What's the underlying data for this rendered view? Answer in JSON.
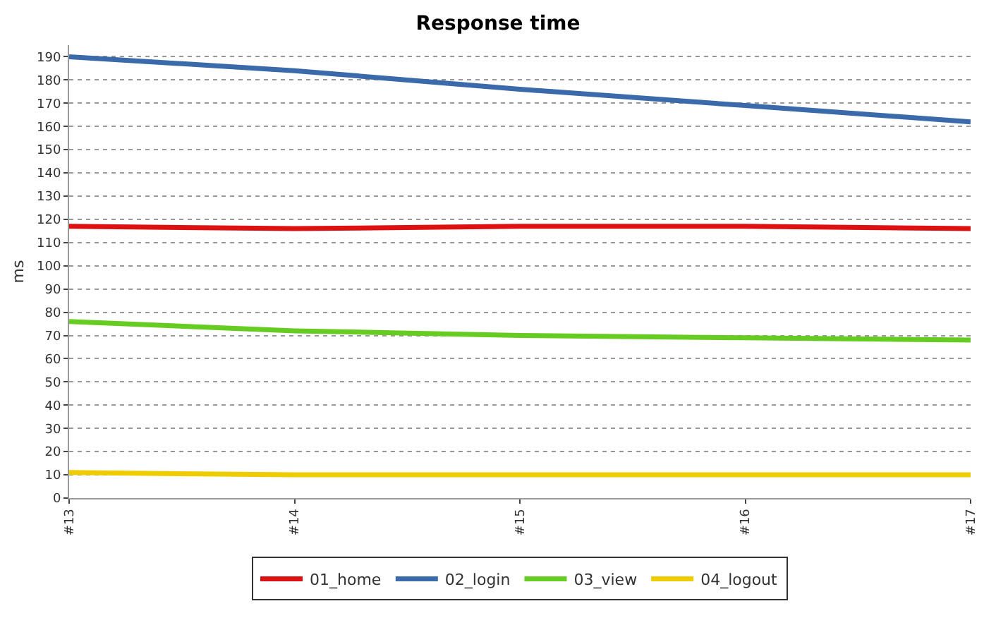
{
  "chart_data": {
    "type": "line",
    "title": "Response time",
    "ylabel": "ms",
    "categories": [
      "#13",
      "#14",
      "#15",
      "#16",
      "#17"
    ],
    "series": [
      {
        "name": "01_home",
        "color": "#dd1111",
        "values": [
          117,
          116,
          117,
          117,
          116
        ]
      },
      {
        "name": "02_login",
        "color": "#3a6aaa",
        "values": [
          190,
          184,
          176,
          169,
          162
        ]
      },
      {
        "name": "03_view",
        "color": "#66cc22",
        "values": [
          76,
          72,
          70,
          69,
          68
        ]
      },
      {
        "name": "04_logout",
        "color": "#eecc00",
        "values": [
          11,
          10,
          10,
          10,
          10
        ]
      }
    ],
    "ylim": [
      0,
      195
    ],
    "yticks": [
      0,
      10,
      20,
      30,
      40,
      50,
      60,
      70,
      80,
      90,
      100,
      110,
      120,
      130,
      140,
      150,
      160,
      170,
      180,
      190
    ],
    "grid": "y",
    "legend": "bottom",
    "marker": "none",
    "line_style": "solid"
  }
}
